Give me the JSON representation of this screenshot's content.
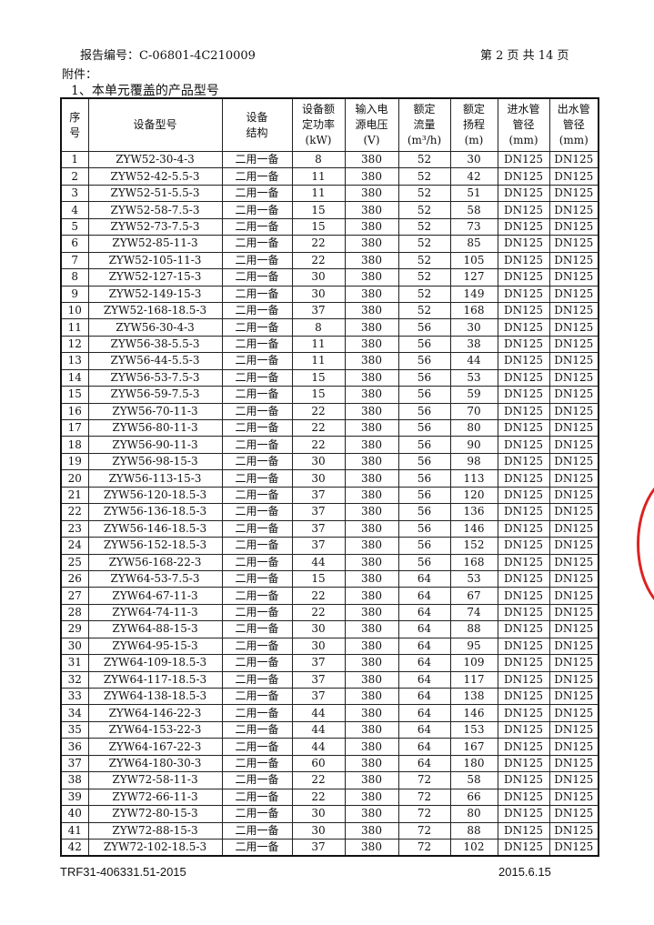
{
  "header": {
    "report_no": "报告编号：C-06801-4C210009",
    "page": "第 2 页 共 14 页"
  },
  "attachment_label": "附件：",
  "section_title": "1、本单元覆盖的产品型号",
  "table": {
    "columns": [
      "序\n号",
      "设备型号",
      "设备\n结构",
      "设备额\n定功率\n(kW)",
      "输入电\n源电压\n(V)",
      "额定\n流量\n(m³/h)",
      "额定\n扬程\n(m)",
      "进水管\n管径\n(mm)",
      "出水管\n管径\n(mm)"
    ],
    "rows": [
      [
        "1",
        "ZYW52-30-4-3",
        "二用一备",
        "8",
        "380",
        "52",
        "30",
        "DN125",
        "DN125"
      ],
      [
        "2",
        "ZYW52-42-5.5-3",
        "二用一备",
        "11",
        "380",
        "52",
        "42",
        "DN125",
        "DN125"
      ],
      [
        "3",
        "ZYW52-51-5.5-3",
        "二用一备",
        "11",
        "380",
        "52",
        "51",
        "DN125",
        "DN125"
      ],
      [
        "4",
        "ZYW52-58-7.5-3",
        "二用一备",
        "15",
        "380",
        "52",
        "58",
        "DN125",
        "DN125"
      ],
      [
        "5",
        "ZYW52-73-7.5-3",
        "二用一备",
        "15",
        "380",
        "52",
        "73",
        "DN125",
        "DN125"
      ],
      [
        "6",
        "ZYW52-85-11-3",
        "二用一备",
        "22",
        "380",
        "52",
        "85",
        "DN125",
        "DN125"
      ],
      [
        "7",
        "ZYW52-105-11-3",
        "二用一备",
        "22",
        "380",
        "52",
        "105",
        "DN125",
        "DN125"
      ],
      [
        "8",
        "ZYW52-127-15-3",
        "二用一备",
        "30",
        "380",
        "52",
        "127",
        "DN125",
        "DN125"
      ],
      [
        "9",
        "ZYW52-149-15-3",
        "二用一备",
        "30",
        "380",
        "52",
        "149",
        "DN125",
        "DN125"
      ],
      [
        "10",
        "ZYW52-168-18.5-3",
        "二用一备",
        "37",
        "380",
        "52",
        "168",
        "DN125",
        "DN125"
      ],
      [
        "11",
        "ZYW56-30-4-3",
        "二用一备",
        "8",
        "380",
        "56",
        "30",
        "DN125",
        "DN125"
      ],
      [
        "12",
        "ZYW56-38-5.5-3",
        "二用一备",
        "11",
        "380",
        "56",
        "38",
        "DN125",
        "DN125"
      ],
      [
        "13",
        "ZYW56-44-5.5-3",
        "二用一备",
        "11",
        "380",
        "56",
        "44",
        "DN125",
        "DN125"
      ],
      [
        "14",
        "ZYW56-53-7.5-3",
        "二用一备",
        "15",
        "380",
        "56",
        "53",
        "DN125",
        "DN125"
      ],
      [
        "15",
        "ZYW56-59-7.5-3",
        "二用一备",
        "15",
        "380",
        "56",
        "59",
        "DN125",
        "DN125"
      ],
      [
        "16",
        "ZYW56-70-11-3",
        "二用一备",
        "22",
        "380",
        "56",
        "70",
        "DN125",
        "DN125"
      ],
      [
        "17",
        "ZYW56-80-11-3",
        "二用一备",
        "22",
        "380",
        "56",
        "80",
        "DN125",
        "DN125"
      ],
      [
        "18",
        "ZYW56-90-11-3",
        "二用一备",
        "22",
        "380",
        "56",
        "90",
        "DN125",
        "DN125"
      ],
      [
        "19",
        "ZYW56-98-15-3",
        "二用一备",
        "30",
        "380",
        "56",
        "98",
        "DN125",
        "DN125"
      ],
      [
        "20",
        "ZYW56-113-15-3",
        "二用一备",
        "30",
        "380",
        "56",
        "113",
        "DN125",
        "DN125"
      ],
      [
        "21",
        "ZYW56-120-18.5-3",
        "二用一备",
        "37",
        "380",
        "56",
        "120",
        "DN125",
        "DN125"
      ],
      [
        "22",
        "ZYW56-136-18.5-3",
        "二用一备",
        "37",
        "380",
        "56",
        "136",
        "DN125",
        "DN125"
      ],
      [
        "23",
        "ZYW56-146-18.5-3",
        "二用一备",
        "37",
        "380",
        "56",
        "146",
        "DN125",
        "DN125"
      ],
      [
        "24",
        "ZYW56-152-18.5-3",
        "二用一备",
        "37",
        "380",
        "56",
        "152",
        "DN125",
        "DN125"
      ],
      [
        "25",
        "ZYW56-168-22-3",
        "二用一备",
        "44",
        "380",
        "56",
        "168",
        "DN125",
        "DN125"
      ],
      [
        "26",
        "ZYW64-53-7.5-3",
        "二用一备",
        "15",
        "380",
        "64",
        "53",
        "DN125",
        "DN125"
      ],
      [
        "27",
        "ZYW64-67-11-3",
        "二用一备",
        "22",
        "380",
        "64",
        "67",
        "DN125",
        "DN125"
      ],
      [
        "28",
        "ZYW64-74-11-3",
        "二用一备",
        "22",
        "380",
        "64",
        "74",
        "DN125",
        "DN125"
      ],
      [
        "29",
        "ZYW64-88-15-3",
        "二用一备",
        "30",
        "380",
        "64",
        "88",
        "DN125",
        "DN125"
      ],
      [
        "30",
        "ZYW64-95-15-3",
        "二用一备",
        "30",
        "380",
        "64",
        "95",
        "DN125",
        "DN125"
      ],
      [
        "31",
        "ZYW64-109-18.5-3",
        "二用一备",
        "37",
        "380",
        "64",
        "109",
        "DN125",
        "DN125"
      ],
      [
        "32",
        "ZYW64-117-18.5-3",
        "二用一备",
        "37",
        "380",
        "64",
        "117",
        "DN125",
        "DN125"
      ],
      [
        "33",
        "ZYW64-138-18.5-3",
        "二用一备",
        "37",
        "380",
        "64",
        "138",
        "DN125",
        "DN125"
      ],
      [
        "34",
        "ZYW64-146-22-3",
        "二用一备",
        "44",
        "380",
        "64",
        "146",
        "DN125",
        "DN125"
      ],
      [
        "35",
        "ZYW64-153-22-3",
        "二用一备",
        "44",
        "380",
        "64",
        "153",
        "DN125",
        "DN125"
      ],
      [
        "36",
        "ZYW64-167-22-3",
        "二用一备",
        "44",
        "380",
        "64",
        "167",
        "DN125",
        "DN125"
      ],
      [
        "37",
        "ZYW64-180-30-3",
        "二用一备",
        "60",
        "380",
        "64",
        "180",
        "DN125",
        "DN125"
      ],
      [
        "38",
        "ZYW72-58-11-3",
        "二用一备",
        "22",
        "380",
        "72",
        "58",
        "DN125",
        "DN125"
      ],
      [
        "39",
        "ZYW72-66-11-3",
        "二用一备",
        "22",
        "380",
        "72",
        "66",
        "DN125",
        "DN125"
      ],
      [
        "40",
        "ZYW72-80-15-3",
        "二用一备",
        "30",
        "380",
        "72",
        "80",
        "DN125",
        "DN125"
      ],
      [
        "41",
        "ZYW72-88-15-3",
        "二用一备",
        "30",
        "380",
        "72",
        "88",
        "DN125",
        "DN125"
      ],
      [
        "42",
        "ZYW72-102-18.5-3",
        "二用一备",
        "37",
        "380",
        "72",
        "102",
        "DN125",
        "DN125"
      ]
    ]
  },
  "footer": {
    "left": "TRF31-406331.51-2015",
    "right": "2015.6.15"
  },
  "stamp": {
    "color": "#dd2222"
  }
}
